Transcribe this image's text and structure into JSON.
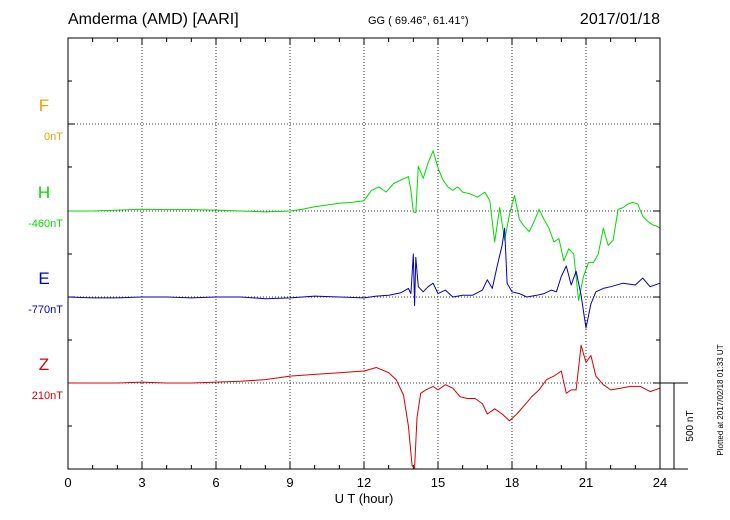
{
  "header": {
    "title": "Amderma (AMD)  [AARI]",
    "coords": "GG ( 69.46°,  61.41°)",
    "date": "2017/01/18"
  },
  "side_note": "Plotted at 2017/02/18 01:33 UT",
  "colors": {
    "F": "#f0a000",
    "H": "#00dd00",
    "E": "#0000cc",
    "Z": "#dd0000",
    "axis": "#000000"
  },
  "chart_data": {
    "type": "line",
    "xlabel": "U T (hour)",
    "xlim": [
      0,
      24
    ],
    "x_ticks": [
      "0",
      "3",
      "6",
      "9",
      "12",
      "15",
      "18",
      "21",
      "24"
    ],
    "scale_label": "500 nT",
    "scale_nT": 500,
    "components": [
      {
        "name": "F",
        "baseline": "0nT"
      },
      {
        "name": "H",
        "baseline": "-460nT"
      },
      {
        "name": "E",
        "baseline": "-770nT"
      },
      {
        "name": "Z",
        "baseline": "210nT"
      }
    ],
    "series": [
      {
        "name": "H",
        "x": [
          0,
          1,
          2,
          3,
          4,
          5,
          6,
          7,
          8,
          9,
          9.5,
          10,
          10.5,
          11,
          11.5,
          12,
          12.3,
          12.6,
          12.9,
          13.2,
          13.5,
          13.8,
          13.9,
          14.0,
          14.1,
          14.2,
          14.4,
          14.6,
          14.8,
          15.0,
          15.2,
          15.4,
          15.6,
          15.8,
          16.0,
          16.3,
          16.6,
          16.9,
          17.1,
          17.3,
          17.5,
          17.7,
          17.9,
          18.1,
          18.3,
          18.5,
          18.7,
          18.9,
          19.1,
          19.3,
          19.5,
          19.7,
          19.9,
          20.1,
          20.3,
          20.5,
          20.7,
          20.9,
          21.1,
          21.3,
          21.5,
          21.7,
          21.9,
          22.1,
          22.3,
          22.5,
          22.7,
          22.9,
          23.1,
          23.3,
          23.5,
          23.7,
          23.9,
          24.0
        ],
        "values": [
          0,
          0,
          5,
          10,
          8,
          8,
          5,
          0,
          -5,
          0,
          10,
          25,
          35,
          45,
          50,
          60,
          120,
          140,
          110,
          160,
          180,
          200,
          120,
          -5,
          -10,
          260,
          190,
          280,
          350,
          250,
          180,
          140,
          120,
          140,
          110,
          100,
          80,
          110,
          60,
          -180,
          20,
          -170,
          -20,
          90,
          -50,
          -90,
          -120,
          -60,
          10,
          -50,
          -100,
          -180,
          -160,
          -290,
          -220,
          -250,
          -520,
          -380,
          -300,
          -300,
          -250,
          -100,
          -200,
          -170,
          10,
          20,
          40,
          50,
          40,
          -30,
          -60,
          -80,
          -90,
          -100
        ]
      },
      {
        "name": "E",
        "x": [
          0,
          1,
          2,
          3,
          4,
          5,
          6,
          7,
          8,
          9,
          10,
          11,
          12,
          12.5,
          13,
          13.5,
          13.8,
          13.9,
          14.0,
          14.05,
          14.1,
          14.2,
          14.4,
          14.6,
          14.8,
          15.0,
          15.3,
          15.6,
          16.0,
          16.4,
          16.8,
          17.0,
          17.2,
          17.4,
          17.6,
          17.7,
          17.8,
          18.0,
          18.3,
          18.6,
          19.0,
          19.3,
          19.6,
          19.8,
          20.0,
          20.2,
          20.4,
          20.6,
          20.8,
          21.0,
          21.2,
          21.4,
          21.7,
          22.0,
          22.5,
          23.0,
          23.3,
          23.6,
          24.0
        ],
        "values": [
          0,
          -5,
          -5,
          0,
          0,
          -5,
          0,
          0,
          -10,
          -5,
          5,
          0,
          -5,
          5,
          10,
          25,
          50,
          20,
          250,
          -50,
          230,
          60,
          30,
          60,
          80,
          20,
          40,
          0,
          10,
          10,
          40,
          100,
          50,
          180,
          300,
          400,
          80,
          30,
          20,
          0,
          10,
          20,
          40,
          30,
          120,
          180,
          70,
          150,
          10,
          -180,
          -40,
          30,
          50,
          60,
          80,
          70,
          110,
          60,
          80
        ]
      },
      {
        "name": "Z",
        "x": [
          0,
          1,
          2,
          3,
          4,
          5,
          6,
          7,
          8,
          9,
          10,
          11,
          12,
          12.5,
          13,
          13.3,
          13.6,
          13.8,
          13.95,
          14.05,
          14.15,
          14.3,
          14.5,
          14.8,
          15.0,
          15.3,
          15.6,
          15.9,
          16.2,
          16.5,
          16.8,
          17.0,
          17.3,
          17.6,
          17.9,
          18.2,
          18.5,
          18.8,
          19.1,
          19.4,
          19.7,
          20.0,
          20.2,
          20.4,
          20.6,
          20.8,
          21.0,
          21.2,
          21.4,
          21.7,
          22.0,
          22.4,
          22.8,
          23.2,
          23.6,
          24.0
        ],
        "values": [
          0,
          0,
          0,
          5,
          0,
          0,
          5,
          10,
          20,
          40,
          50,
          60,
          70,
          90,
          60,
          20,
          -70,
          -250,
          -480,
          -520,
          -200,
          -60,
          -40,
          -20,
          -40,
          -10,
          -30,
          -80,
          -90,
          -90,
          -120,
          -180,
          -150,
          -180,
          -220,
          -180,
          -130,
          -80,
          -40,
          20,
          40,
          70,
          -60,
          -40,
          -40,
          220,
          120,
          160,
          40,
          -10,
          -40,
          -30,
          -20,
          -20,
          -50,
          -30
        ]
      }
    ]
  }
}
